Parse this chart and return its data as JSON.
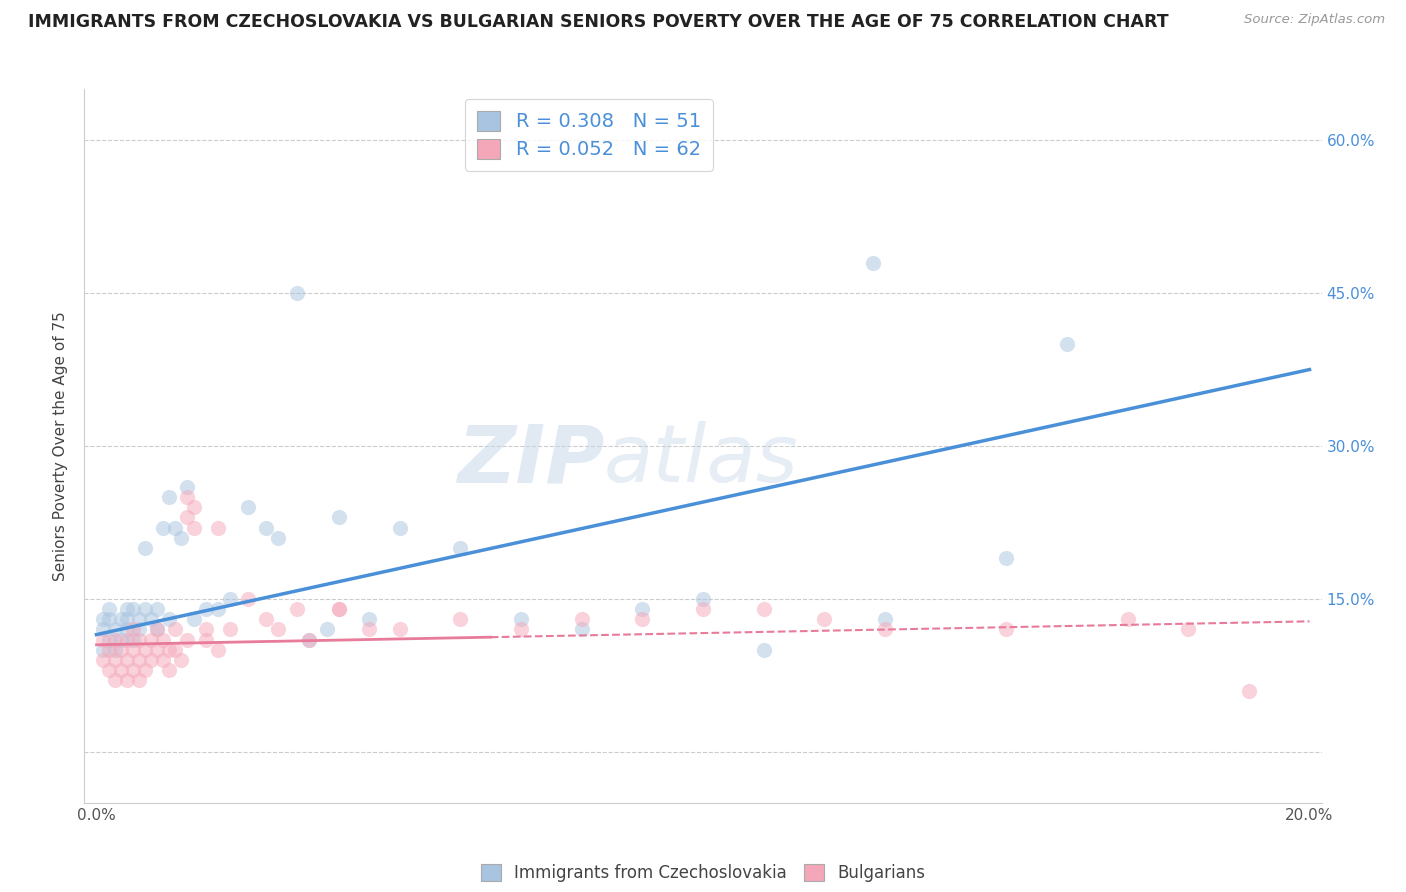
{
  "title": "IMMIGRANTS FROM CZECHOSLOVAKIA VS BULGARIAN SENIORS POVERTY OVER THE AGE OF 75 CORRELATION CHART",
  "source": "Source: ZipAtlas.com",
  "xlabel": "",
  "ylabel": "Seniors Poverty Over the Age of 75",
  "legend_label1": "Immigrants from Czechoslovakia",
  "legend_label2": "Bulgarians",
  "R1": 0.308,
  "N1": 51,
  "R2": 0.052,
  "N2": 62,
  "color1": "#a8c4e0",
  "color2": "#f4a7b9",
  "line_color1": "#4a90d9",
  "line_color2": "#e87a9a",
  "xlim": [
    -0.002,
    0.202
  ],
  "ylim": [
    -0.05,
    0.65
  ],
  "xticks": [
    0.0,
    0.05,
    0.1,
    0.15,
    0.2
  ],
  "xtick_labels": [
    "0.0%",
    "",
    "",
    "",
    "20.0%"
  ],
  "yticks_left": [
    0.0,
    0.15,
    0.3,
    0.45,
    0.6
  ],
  "yticks_right": [
    0.0,
    0.15,
    0.3,
    0.45,
    0.6
  ],
  "ytick_labels_right": [
    "",
    "15.0%",
    "30.0%",
    "45.0%",
    "60.0%"
  ],
  "watermark_zip": "ZIP",
  "watermark_atlas": "atlas",
  "background_color": "#ffffff",
  "grid_color": "#cccccc",
  "scatter1_x": [
    0.001,
    0.001,
    0.001,
    0.002,
    0.002,
    0.002,
    0.003,
    0.003,
    0.004,
    0.004,
    0.005,
    0.005,
    0.005,
    0.006,
    0.006,
    0.007,
    0.007,
    0.008,
    0.008,
    0.009,
    0.01,
    0.01,
    0.011,
    0.012,
    0.012,
    0.013,
    0.014,
    0.015,
    0.016,
    0.018,
    0.02,
    0.022,
    0.025,
    0.028,
    0.03,
    0.035,
    0.038,
    0.04,
    0.045,
    0.05,
    0.06,
    0.07,
    0.08,
    0.09,
    0.1,
    0.11,
    0.128,
    0.13,
    0.15,
    0.16,
    0.033
  ],
  "scatter1_y": [
    0.13,
    0.12,
    0.1,
    0.14,
    0.13,
    0.11,
    0.1,
    0.12,
    0.11,
    0.13,
    0.14,
    0.13,
    0.12,
    0.14,
    0.11,
    0.13,
    0.12,
    0.2,
    0.14,
    0.13,
    0.12,
    0.14,
    0.22,
    0.25,
    0.13,
    0.22,
    0.21,
    0.26,
    0.13,
    0.14,
    0.14,
    0.15,
    0.24,
    0.22,
    0.21,
    0.11,
    0.12,
    0.23,
    0.13,
    0.22,
    0.2,
    0.13,
    0.12,
    0.14,
    0.15,
    0.1,
    0.48,
    0.13,
    0.19,
    0.4,
    0.45
  ],
  "scatter2_x": [
    0.001,
    0.001,
    0.002,
    0.002,
    0.003,
    0.003,
    0.003,
    0.004,
    0.004,
    0.005,
    0.005,
    0.005,
    0.006,
    0.006,
    0.006,
    0.007,
    0.007,
    0.007,
    0.008,
    0.008,
    0.009,
    0.009,
    0.01,
    0.01,
    0.011,
    0.011,
    0.012,
    0.012,
    0.013,
    0.013,
    0.014,
    0.015,
    0.015,
    0.015,
    0.016,
    0.016,
    0.018,
    0.018,
    0.02,
    0.02,
    0.022,
    0.025,
    0.028,
    0.03,
    0.035,
    0.04,
    0.045,
    0.05,
    0.06,
    0.07,
    0.08,
    0.09,
    0.1,
    0.11,
    0.12,
    0.13,
    0.15,
    0.17,
    0.18,
    0.19,
    0.033,
    0.04
  ],
  "scatter2_y": [
    0.09,
    0.11,
    0.08,
    0.1,
    0.09,
    0.07,
    0.11,
    0.1,
    0.08,
    0.11,
    0.09,
    0.07,
    0.1,
    0.08,
    0.12,
    0.09,
    0.11,
    0.07,
    0.1,
    0.08,
    0.11,
    0.09,
    0.1,
    0.12,
    0.11,
    0.09,
    0.1,
    0.08,
    0.12,
    0.1,
    0.09,
    0.23,
    0.25,
    0.11,
    0.22,
    0.24,
    0.11,
    0.12,
    0.22,
    0.1,
    0.12,
    0.15,
    0.13,
    0.12,
    0.11,
    0.14,
    0.12,
    0.12,
    0.13,
    0.12,
    0.13,
    0.13,
    0.14,
    0.14,
    0.13,
    0.12,
    0.12,
    0.13,
    0.12,
    0.06,
    0.14,
    0.14
  ],
  "scatter_size": 120,
  "scatter_alpha": 0.5,
  "trend_line1_x": [
    0.0,
    0.2
  ],
  "trend_line1_y": [
    0.115,
    0.375
  ],
  "trend_line2_x": [
    0.0,
    0.2
  ],
  "trend_line2_y": [
    0.105,
    0.128
  ]
}
